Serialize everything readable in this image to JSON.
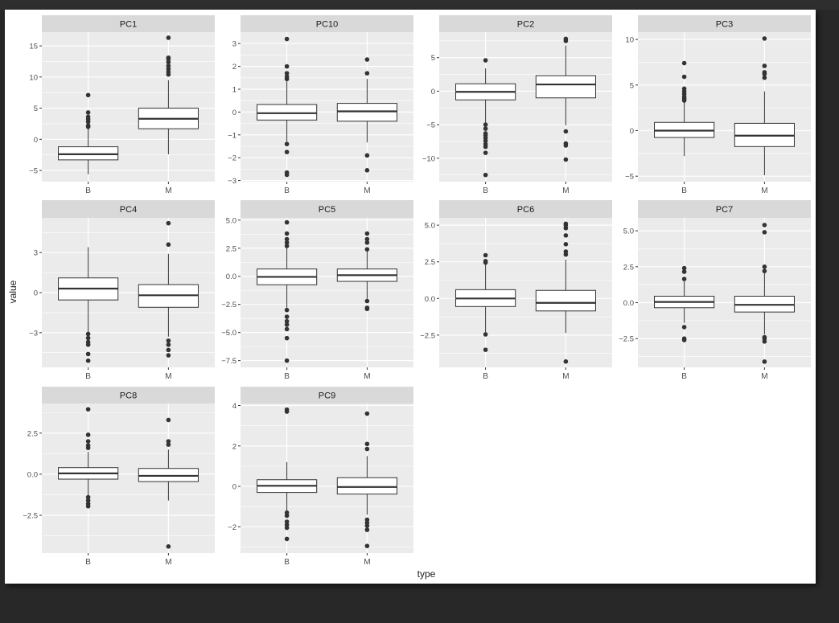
{
  "window": {
    "background": "#282828",
    "canvas_background": "#ffffff"
  },
  "chart_data": {
    "type": "box",
    "facet": "wrap",
    "xlabel": "type",
    "ylabel": "value",
    "categories": [
      "B",
      "M"
    ],
    "colors": {
      "panel_bg": "#ebebeb",
      "strip_bg": "#d9d9d9",
      "grid": "#ffffff",
      "box_fill": "#ffffff",
      "box_line": "#333333",
      "point": "#333333",
      "axis_text": "#4d4d4d"
    },
    "panels": [
      {
        "title": "PC1",
        "ylim": [
          -6.8,
          17.2
        ],
        "ticks": [
          -5,
          0,
          5,
          10,
          15
        ],
        "tick_labels": [
          "−5",
          "0",
          "5",
          "10",
          "15"
        ],
        "boxes": [
          {
            "cat": "B",
            "q1": -3.3,
            "median": -2.4,
            "q3": -1.2,
            "wlo": -5.6,
            "whi": 1.9,
            "outliers": [
              2.0,
              2.2,
              2.8,
              3.2,
              3.6,
              4.3,
              7.1
            ]
          },
          {
            "cat": "M",
            "q1": 1.7,
            "median": 3.3,
            "q3": 5.0,
            "wlo": -2.4,
            "whi": 9.5,
            "outliers": [
              10.4,
              10.8,
              11.3,
              11.8,
              12.4,
              12.9,
              13.1,
              16.3
            ]
          }
        ]
      },
      {
        "title": "PC10",
        "ylim": [
          -3.05,
          3.5
        ],
        "ticks": [
          -3,
          -2,
          -1,
          0,
          1,
          2,
          3
        ],
        "tick_labels": [
          "−3",
          "−2",
          "−1",
          "0",
          "1",
          "2",
          "3"
        ],
        "boxes": [
          {
            "cat": "B",
            "q1": -0.35,
            "median": -0.05,
            "q3": 0.33,
            "wlo": -1.3,
            "whi": 1.35,
            "outliers": [
              -2.75,
              -2.65,
              -1.75,
              -1.4,
              1.45,
              1.55,
              1.7,
              2.0,
              3.2
            ]
          },
          {
            "cat": "M",
            "q1": -0.4,
            "median": 0.03,
            "q3": 0.38,
            "wlo": -1.33,
            "whi": 1.45,
            "outliers": [
              -2.55,
              -1.9,
              1.7,
              2.3
            ]
          }
        ]
      },
      {
        "title": "PC2",
        "ylim": [
          -13.5,
          8.8
        ],
        "ticks": [
          -10,
          -5,
          0,
          5
        ],
        "tick_labels": [
          "−10",
          "−5",
          "0",
          "5"
        ],
        "boxes": [
          {
            "cat": "B",
            "q1": -1.3,
            "median": -0.1,
            "q3": 1.1,
            "wlo": -4.8,
            "whi": 3.4,
            "outliers": [
              -12.5,
              -9.2,
              -8.3,
              -7.9,
              -7.4,
              -7.0,
              -6.6,
              -6.3,
              -5.6,
              -5.0,
              4.6
            ]
          },
          {
            "cat": "M",
            "q1": -1.0,
            "median": 1.0,
            "q3": 2.3,
            "wlo": -5.1,
            "whi": 6.8,
            "outliers": [
              -10.2,
              -8.1,
              -7.8,
              -6.0,
              7.5,
              7.8
            ]
          }
        ]
      },
      {
        "title": "PC3",
        "ylim": [
          -5.6,
          10.8
        ],
        "ticks": [
          -5,
          0,
          5,
          10
        ],
        "tick_labels": [
          "−5",
          "0",
          "5",
          "10"
        ],
        "boxes": [
          {
            "cat": "B",
            "q1": -0.75,
            "median": 0.0,
            "q3": 0.9,
            "wlo": -2.8,
            "whi": 3.2,
            "outliers": [
              3.3,
              3.5,
              3.7,
              4.0,
              4.3,
              4.6,
              5.9,
              7.4
            ]
          },
          {
            "cat": "M",
            "q1": -1.75,
            "median": -0.55,
            "q3": 0.8,
            "wlo": -4.9,
            "whi": 4.3,
            "outliers": [
              5.8,
              6.2,
              6.4,
              7.1,
              10.1
            ]
          }
        ]
      },
      {
        "title": "PC4",
        "ylim": [
          -5.6,
          5.6
        ],
        "ticks": [
          -3,
          0,
          3
        ],
        "tick_labels": [
          "−3",
          "0",
          "3"
        ],
        "boxes": [
          {
            "cat": "B",
            "q1": -0.55,
            "median": 0.3,
            "q3": 1.1,
            "wlo": -3.0,
            "whi": 3.4,
            "outliers": [
              -5.1,
              -4.6,
              -3.9,
              -3.7,
              -3.4,
              -3.1
            ]
          },
          {
            "cat": "M",
            "q1": -1.1,
            "median": -0.2,
            "q3": 0.6,
            "wlo": -3.3,
            "whi": 2.9,
            "outliers": [
              -4.7,
              -4.3,
              -3.9,
              -3.6,
              3.6,
              5.2
            ]
          }
        ]
      },
      {
        "title": "PC5",
        "ylim": [
          -8.1,
          5.2
        ],
        "ticks": [
          -7.5,
          -5.0,
          -2.5,
          0.0,
          2.5,
          5.0
        ],
        "tick_labels": [
          "−7.5",
          "−5.0",
          "−2.5",
          "0.0",
          "2.5",
          "5.0"
        ],
        "boxes": [
          {
            "cat": "B",
            "q1": -0.75,
            "median": -0.05,
            "q3": 0.65,
            "wlo": -2.8,
            "whi": 2.6,
            "outliers": [
              -7.5,
              -5.5,
              -4.7,
              -4.3,
              -4.0,
              -3.6,
              -3.0,
              2.7,
              3.0,
              3.3,
              3.8,
              4.8
            ]
          },
          {
            "cat": "M",
            "q1": -0.45,
            "median": 0.1,
            "q3": 0.65,
            "wlo": -2.0,
            "whi": 2.3,
            "outliers": [
              -2.9,
              -2.8,
              -2.2,
              2.4,
              3.0,
              3.3,
              3.8
            ]
          }
        ]
      },
      {
        "title": "PC6",
        "ylim": [
          -4.7,
          5.5
        ],
        "ticks": [
          -2.5,
          0.0,
          2.5,
          5.0
        ],
        "tick_labels": [
          "−2.5",
          "0.0",
          "2.5",
          "5.0"
        ],
        "boxes": [
          {
            "cat": "B",
            "q1": -0.55,
            "median": 0.0,
            "q3": 0.6,
            "wlo": -2.3,
            "whi": 2.35,
            "outliers": [
              -3.5,
              -2.45,
              2.45,
              2.55,
              2.95
            ]
          },
          {
            "cat": "M",
            "q1": -0.85,
            "median": -0.3,
            "q3": 0.55,
            "wlo": -2.35,
            "whi": 2.65,
            "outliers": [
              -4.3,
              3.0,
              3.2,
              3.7,
              4.3,
              4.8,
              5.0,
              5.1
            ]
          }
        ]
      },
      {
        "title": "PC7",
        "ylim": [
          -4.5,
          5.9
        ],
        "ticks": [
          -2.5,
          0.0,
          2.5,
          5.0
        ],
        "tick_labels": [
          "−2.5",
          "0.0",
          "2.5",
          "5.0"
        ],
        "boxes": [
          {
            "cat": "B",
            "q1": -0.35,
            "median": 0.05,
            "q3": 0.45,
            "wlo": -1.4,
            "whi": 1.5,
            "outliers": [
              -2.6,
              -2.5,
              -1.7,
              1.65,
              2.15,
              2.4
            ]
          },
          {
            "cat": "M",
            "q1": -0.65,
            "median": -0.15,
            "q3": 0.45,
            "wlo": -2.2,
            "whi": 2.1,
            "outliers": [
              -4.1,
              -2.7,
              -2.5,
              -2.4,
              2.2,
              2.5,
              4.9,
              5.4
            ]
          }
        ]
      },
      {
        "title": "PC8",
        "ylim": [
          -4.8,
          4.3
        ],
        "ticks": [
          -2.5,
          0.0,
          2.5
        ],
        "tick_labels": [
          "−2.5",
          "0.0",
          "2.5"
        ],
        "boxes": [
          {
            "cat": "B",
            "q1": -0.3,
            "median": 0.05,
            "q3": 0.4,
            "wlo": -1.3,
            "whi": 1.35,
            "outliers": [
              -1.95,
              -1.8,
              -1.6,
              -1.4,
              1.6,
              1.75,
              2.0,
              2.4,
              3.95
            ]
          },
          {
            "cat": "M",
            "q1": -0.45,
            "median": -0.1,
            "q3": 0.35,
            "wlo": -1.6,
            "whi": 1.5,
            "outliers": [
              -4.4,
              1.8,
              2.0,
              3.3
            ]
          }
        ]
      },
      {
        "title": "PC9",
        "ylim": [
          -3.3,
          4.1
        ],
        "ticks": [
          -2,
          0,
          2,
          4
        ],
        "tick_labels": [
          "−2",
          "0",
          "2",
          "4"
        ],
        "boxes": [
          {
            "cat": "B",
            "q1": -0.3,
            "median": 0.03,
            "q3": 0.33,
            "wlo": -1.2,
            "whi": 1.2,
            "outliers": [
              -2.6,
              -2.05,
              -1.9,
              -1.75,
              -1.45,
              -1.3,
              3.7,
              3.8
            ]
          },
          {
            "cat": "M",
            "q1": -0.38,
            "median": -0.03,
            "q3": 0.43,
            "wlo": -1.4,
            "whi": 1.5,
            "outliers": [
              -2.95,
              -2.15,
              -1.95,
              -1.8,
              -1.65,
              1.85,
              2.1,
              3.6
            ]
          }
        ]
      }
    ]
  }
}
